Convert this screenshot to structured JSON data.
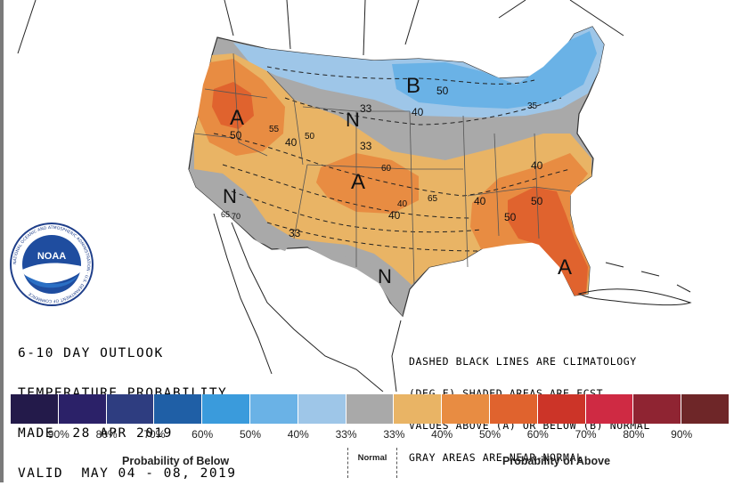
{
  "title_block": {
    "line1": "6-10 DAY OUTLOOK",
    "line2": "TEMPERATURE PROBABILITY",
    "line3": "MADE  28 APR 2019",
    "line4": "VALID  MAY 04 - 08, 2019"
  },
  "notes": {
    "line1": "DASHED BLACK LINES ARE CLIMATOLOGY",
    "line2": "(DEG F) SHADED AREAS ARE FCST",
    "line3": "VALUES ABOVE (A) OR BELOW (B) NORMAL",
    "line4": "GRAY AREAS ARE NEAR-NORMAL"
  },
  "logo": {
    "name": "NOAA",
    "text": "NOAA",
    "ring_text": "NATIONAL OCEANIC AND ATMOSPHERIC ADMINISTRATION · U.S. DEPARTMENT OF COMMERCE"
  },
  "map_labels": {
    "regions": [
      {
        "letter": "B",
        "kind": "below"
      },
      {
        "letter": "A",
        "kind": "above"
      },
      {
        "letter": "A",
        "kind": "above"
      },
      {
        "letter": "A",
        "kind": "above"
      },
      {
        "letter": "N",
        "kind": "normal"
      },
      {
        "letter": "N",
        "kind": "normal"
      },
      {
        "letter": "N",
        "kind": "normal"
      }
    ],
    "contours": [
      "50",
      "33",
      "40",
      "35",
      "50",
      "40",
      "50",
      "55",
      "60",
      "33",
      "40",
      "65",
      "40",
      "33",
      "40",
      "50",
      "50",
      "40",
      "70",
      "65"
    ]
  },
  "legend": {
    "colors": [
      "#231a4a",
      "#2b2168",
      "#2e3d80",
      "#1f5fa6",
      "#3a9bdc",
      "#6ab2e6",
      "#9ec6e8",
      "#a9a9a9",
      "#e9b465",
      "#e88c42",
      "#e0632e",
      "#cc3428",
      "#cf2a43",
      "#8f2432",
      "#6e2628"
    ],
    "ticks": [
      "90%",
      "80%",
      "70%",
      "60%",
      "50%",
      "40%",
      "33%",
      "33%",
      "40%",
      "50%",
      "60%",
      "70%",
      "80%",
      "90%"
    ],
    "below_label": "Probability of Below",
    "normal_label": "Normal",
    "above_label": "Probability of Above"
  }
}
